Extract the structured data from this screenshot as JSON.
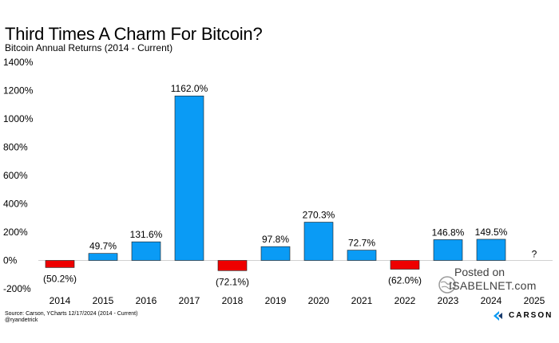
{
  "header": {
    "title": "Third Times A Charm For Bitcoin?",
    "subtitle": "Bitcoin Annual Returns (2014 - Current)"
  },
  "footer": {
    "source": "Source: Carson, YCharts 12/17/2024 (2014 - Current)",
    "handle": "@ryandetrick"
  },
  "watermark": {
    "posted": "Posted on",
    "site": "ISABELNET.com"
  },
  "brand": {
    "name": "CARSON"
  },
  "colors": {
    "positive": "#0a9bf5",
    "negative": "#ee0000",
    "text": "#000000"
  },
  "chart_data": {
    "type": "bar",
    "title": "Third Times A Charm For Bitcoin?",
    "subtitle": "Bitcoin Annual Returns (2014 - Current)",
    "categories": [
      "2014",
      "2015",
      "2016",
      "2017",
      "2018",
      "2019",
      "2020",
      "2021",
      "2022",
      "2023",
      "2024",
      "2025"
    ],
    "values": [
      -50.2,
      49.7,
      131.6,
      1162.0,
      -72.1,
      97.8,
      270.3,
      72.7,
      -62.0,
      146.8,
      149.5,
      null
    ],
    "data_labels": [
      "(50.2%)",
      "49.7%",
      "131.6%",
      "1162.0%",
      "(72.1%)",
      "97.8%",
      "270.3%",
      "72.7%",
      "(62.0%)",
      "146.8%",
      "149.5%",
      "?"
    ],
    "ylim": [
      -200,
      1400
    ],
    "yticks": [
      -200,
      0,
      200,
      400,
      600,
      800,
      1000,
      1200,
      1400
    ],
    "ytick_labels": [
      "-200%",
      "0%",
      "200%",
      "400%",
      "600%",
      "800%",
      "1000%",
      "1200%",
      "1400%"
    ],
    "grid": false,
    "legend": "none"
  }
}
